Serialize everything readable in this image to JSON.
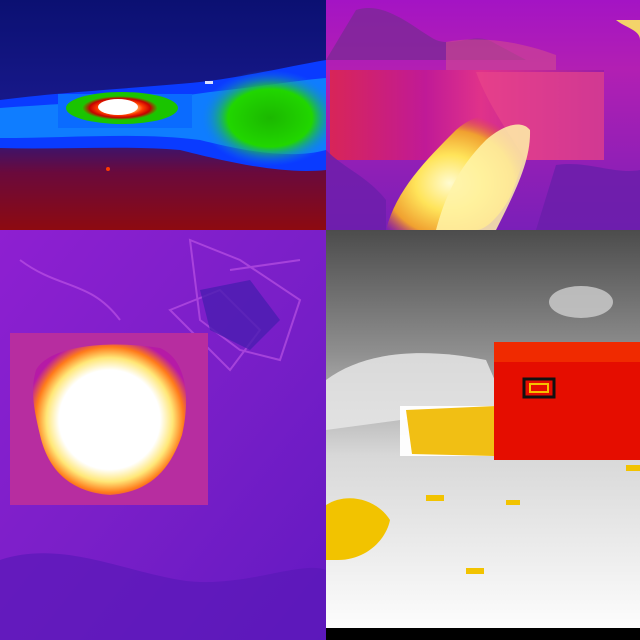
{
  "panels": [
    {
      "id": "p1",
      "description_key": "thermal-rainbow-hot-streak",
      "palette": "rainbow"
    },
    {
      "id": "p2",
      "description_key": "thermal-ironbow-fire",
      "palette": "ironbow"
    },
    {
      "id": "p3",
      "description_key": "thermal-ironbow-blaze",
      "palette": "ironbow"
    },
    {
      "id": "p4",
      "description_key": "thermal-whitehot-building-fire",
      "palette": "white-hot"
    }
  ],
  "colors": {
    "rainbow_bg": "#10157a",
    "rainbow_green": "#22d400",
    "rainbow_hot": "#ffffff",
    "ironbow_purple": "#8a16c9",
    "ironbow_magenta": "#d81fb2",
    "ironbow_yellow": "#ffec72",
    "whitehot_grey": "#8e8e8e",
    "whitehot_red": "#e60c00",
    "whitehot_yellow": "#f2c300"
  }
}
